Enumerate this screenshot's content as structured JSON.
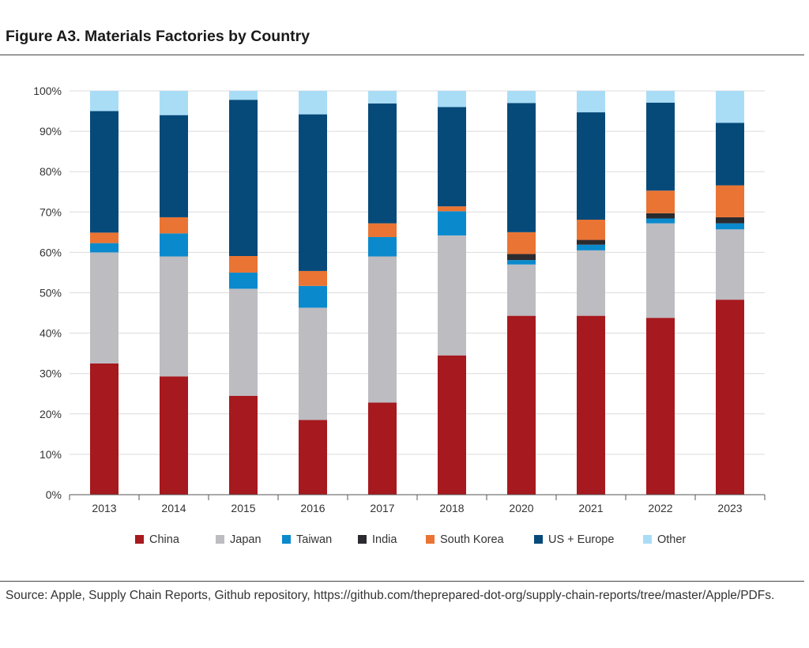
{
  "figure_title": "Figure A3. Materials Factories by Country",
  "source_note": "Source: Apple, Supply Chain Reports, Github repository, https://github.com/theprepared-dot-org/supply-chain-reports/tree/master/Apple/PDFs.",
  "chart_data": {
    "type": "bar",
    "stacked": true,
    "categories": [
      "2013",
      "2014",
      "2015",
      "2016",
      "2017",
      "2018",
      "2020",
      "2021",
      "2022",
      "2023"
    ],
    "ylim": [
      0,
      100
    ],
    "yticks": [
      "0%",
      "10%",
      "20%",
      "30%",
      "40%",
      "50%",
      "60%",
      "70%",
      "80%",
      "90%",
      "100%"
    ],
    "grid": true,
    "legend_position": "bottom",
    "series": [
      {
        "name": "China",
        "color": "#a6191e",
        "values": [
          32.5,
          29.3,
          24.5,
          18.5,
          22.8,
          34.5,
          44.3,
          44.3,
          43.8,
          48.3
        ]
      },
      {
        "name": "Japan",
        "color": "#bdbcc1",
        "values": [
          27.5,
          29.7,
          26.5,
          27.8,
          36.2,
          29.7,
          12.7,
          16.2,
          23.4,
          17.4
        ]
      },
      {
        "name": "Taiwan",
        "color": "#0a8acd",
        "values": [
          2.3,
          5.7,
          4.0,
          5.4,
          4.8,
          6.0,
          1.1,
          1.4,
          1.2,
          1.5
        ]
      },
      {
        "name": "India",
        "color": "#2b2b2f",
        "values": [
          0,
          0,
          0,
          0,
          0,
          0,
          1.5,
          1.2,
          1.3,
          1.5
        ]
      },
      {
        "name": "South Korea",
        "color": "#ea7433",
        "values": [
          2.6,
          4.0,
          4.1,
          3.7,
          3.4,
          1.2,
          5.4,
          5.0,
          5.6,
          7.9
        ]
      },
      {
        "name": "US + Europe",
        "color": "#064a7a",
        "values": [
          30.1,
          25.3,
          38.7,
          38.8,
          29.7,
          24.6,
          32.0,
          26.6,
          21.8,
          15.5
        ]
      },
      {
        "name": "Other",
        "color": "#a9ddf6",
        "values": [
          5.0,
          6.0,
          2.2,
          5.8,
          3.1,
          4.0,
          3.0,
          5.3,
          2.9,
          7.9
        ]
      }
    ]
  }
}
